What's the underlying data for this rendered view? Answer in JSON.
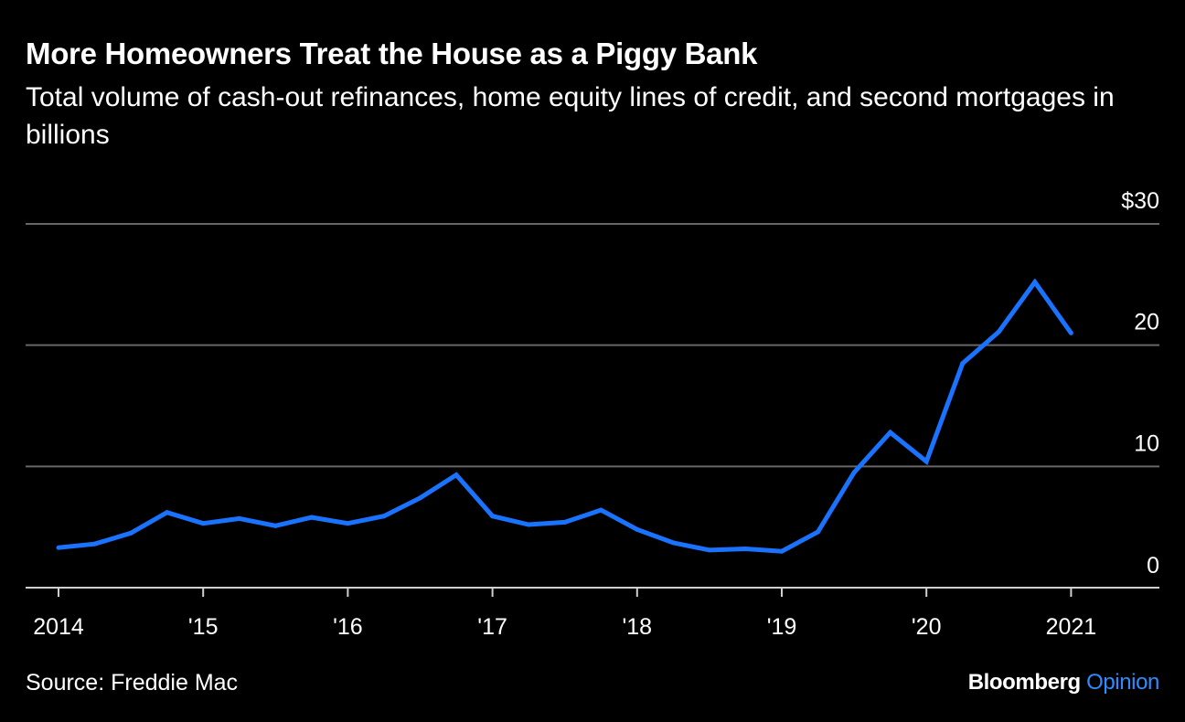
{
  "header": {
    "title": "More Homeowners Treat the House as a Piggy Bank",
    "subtitle": "Total volume of cash-out refinances, home equity lines of credit, and second mortgages in billions"
  },
  "footer": {
    "source": "Source: Freddie Mac",
    "brand": "Bloomberg",
    "brand_section": "Opinion"
  },
  "colors": {
    "background": "#000000",
    "line": "#1a73ff",
    "grid": "#666666",
    "text": "#ffffff",
    "brand_accent": "#2f8cff"
  },
  "chart_data": {
    "type": "line",
    "title": "More Homeowners Treat the House as a Piggy Bank",
    "subtitle": "Total volume of cash-out refinances, home equity lines of credit, and second mortgages in billions",
    "xlabel": "",
    "ylabel": "",
    "ylim": [
      0,
      30
    ],
    "xlim": [
      2014.0,
      2021.75
    ],
    "grid": "horizontal",
    "legend": "none",
    "y_ticks": [
      {
        "value": 0,
        "label": "0"
      },
      {
        "value": 10,
        "label": "10"
      },
      {
        "value": 20,
        "label": "20"
      },
      {
        "value": 30,
        "label": "$30"
      }
    ],
    "x_ticks": [
      {
        "value": 2014,
        "label": "2014"
      },
      {
        "value": 2015,
        "label": "'15"
      },
      {
        "value": 2016,
        "label": "'16"
      },
      {
        "value": 2017,
        "label": "'17"
      },
      {
        "value": 2018,
        "label": "'18"
      },
      {
        "value": 2019,
        "label": "'19"
      },
      {
        "value": 2020,
        "label": "'20"
      },
      {
        "value": 2021,
        "label": "2021"
      }
    ],
    "series": [
      {
        "name": "",
        "color": "#1a73ff",
        "x": [
          2014.0,
          2014.25,
          2014.5,
          2014.75,
          2015.0,
          2015.25,
          2015.5,
          2015.75,
          2016.0,
          2016.25,
          2016.5,
          2016.75,
          2017.0,
          2017.25,
          2017.5,
          2017.75,
          2018.0,
          2018.25,
          2018.5,
          2018.75,
          2019.0,
          2019.25,
          2019.5,
          2019.75,
          2020.0,
          2020.25,
          2020.5,
          2020.75,
          2021.0,
          2021.25
        ],
        "values": [
          3.3,
          3.6,
          4.5,
          6.2,
          5.3,
          5.7,
          5.1,
          5.8,
          5.3,
          5.9,
          7.4,
          9.3,
          5.9,
          5.2,
          5.4,
          6.4,
          4.8,
          3.7,
          3.1,
          3.2,
          3.0,
          4.6,
          9.5,
          12.8,
          10.4,
          18.5,
          21.1,
          25.2,
          21.0,
          null
        ]
      }
    ]
  }
}
